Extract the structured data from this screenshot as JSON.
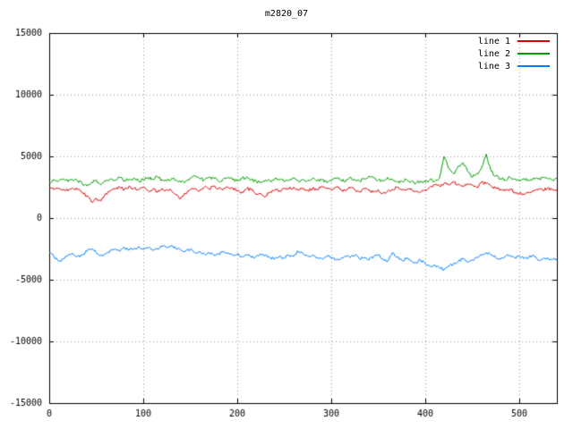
{
  "chart_data": {
    "type": "line",
    "title": "m2820_07",
    "xlabel": "",
    "ylabel": "",
    "xlim": [
      0,
      540
    ],
    "ylim": [
      -15000,
      15000
    ],
    "x_ticks": [
      0,
      100,
      200,
      300,
      400,
      500
    ],
    "y_ticks": [
      -15000,
      -10000,
      -5000,
      0,
      5000,
      10000,
      15000
    ],
    "grid": true,
    "grid_style": "dotted",
    "legend_position": "top-right-inside",
    "x_step": 5,
    "series": [
      {
        "name": "line 1",
        "color": "#dd0000",
        "noise": 130,
        "values": [
          2500,
          2300,
          2400,
          2350,
          2200,
          2450,
          2300,
          2100,
          1800,
          1300,
          1600,
          1400,
          2000,
          2200,
          2350,
          2500,
          2300,
          2600,
          2400,
          2300,
          2500,
          2200,
          2350,
          2100,
          2400,
          2300,
          2200,
          1900,
          1600,
          2000,
          2300,
          2400,
          2250,
          2500,
          2350,
          2600,
          2400,
          2300,
          2500,
          2450,
          2200,
          2100,
          2400,
          2300,
          1900,
          2000,
          1750,
          2100,
          2300,
          2200,
          2400,
          2350,
          2500,
          2300,
          2450,
          2250,
          2400,
          2300,
          2600,
          2400,
          2300,
          2500,
          2350,
          2200,
          2450,
          2300,
          2150,
          2400,
          2250,
          2100,
          2300,
          2000,
          2200,
          2350,
          2500,
          2300,
          2250,
          2400,
          2200,
          2100,
          2300,
          2500,
          2700,
          2600,
          2800,
          2700,
          2900,
          2750,
          2600,
          2800,
          2700,
          2500,
          2900,
          2800,
          2600,
          2400,
          2300,
          2200,
          2350,
          2100,
          2000,
          1900,
          2100,
          2200,
          2300,
          2250,
          2400,
          2300,
          2350
        ]
      },
      {
        "name": "line 2",
        "color": "#00a000",
        "noise": 140,
        "values": [
          2900,
          3100,
          3000,
          3200,
          2950,
          3100,
          3050,
          2800,
          2600,
          2900,
          3100,
          2700,
          3000,
          3200,
          3100,
          3300,
          3000,
          3150,
          3250,
          3000,
          3100,
          3300,
          3200,
          3350,
          3100,
          3000,
          3200,
          3100,
          2900,
          3000,
          3250,
          3400,
          3200,
          3100,
          3300,
          3200,
          3000,
          3150,
          3300,
          3100,
          3000,
          3200,
          3350,
          3100,
          3000,
          2900,
          3100,
          3000,
          3200,
          3100,
          2950,
          3100,
          3250,
          3000,
          3150,
          3050,
          3200,
          3000,
          3100,
          2900,
          3000,
          3200,
          3100,
          2950,
          3300,
          3150,
          3000,
          3200,
          3400,
          3250,
          3100,
          3000,
          3300,
          3150,
          2900,
          3000,
          3100,
          2950,
          2800,
          3000,
          2900,
          3100,
          3000,
          3200,
          5000,
          4000,
          3600,
          4200,
          4500,
          3800,
          3300,
          3600,
          4100,
          5200,
          3800,
          3400,
          3200,
          3100,
          3300,
          3150,
          3000,
          3200,
          3100,
          3250,
          3150,
          3300,
          3200,
          3100,
          3200
        ]
      },
      {
        "name": "line 3",
        "color": "#0080ff",
        "noise": 120,
        "values": [
          -2800,
          -3100,
          -3500,
          -3300,
          -3000,
          -2900,
          -3100,
          -3000,
          -2700,
          -2500,
          -2800,
          -3000,
          -2900,
          -2600,
          -2500,
          -2700,
          -2400,
          -2600,
          -2500,
          -2300,
          -2500,
          -2400,
          -2600,
          -2500,
          -2300,
          -2400,
          -2200,
          -2500,
          -2600,
          -2700,
          -2500,
          -2800,
          -2700,
          -2900,
          -2800,
          -3000,
          -2900,
          -2700,
          -2800,
          -3000,
          -2900,
          -3100,
          -3000,
          -3200,
          -3100,
          -2900,
          -3000,
          -3200,
          -3300,
          -3100,
          -3200,
          -3000,
          -3100,
          -2700,
          -2900,
          -3100,
          -3000,
          -3200,
          -3300,
          -3100,
          -3200,
          -3400,
          -3300,
          -3100,
          -3200,
          -3000,
          -3300,
          -3200,
          -3400,
          -3100,
          -3000,
          -3300,
          -3500,
          -2800,
          -3200,
          -3400,
          -3300,
          -3500,
          -3600,
          -3400,
          -3700,
          -3900,
          -3800,
          -4000,
          -4200,
          -3900,
          -3700,
          -3500,
          -3300,
          -3600,
          -3400,
          -3200,
          -3000,
          -2800,
          -3000,
          -3200,
          -3300,
          -3100,
          -3000,
          -3200,
          -3100,
          -3300,
          -3200,
          -3000,
          -3400,
          -3300,
          -3200,
          -3400,
          -3300
        ]
      }
    ]
  }
}
